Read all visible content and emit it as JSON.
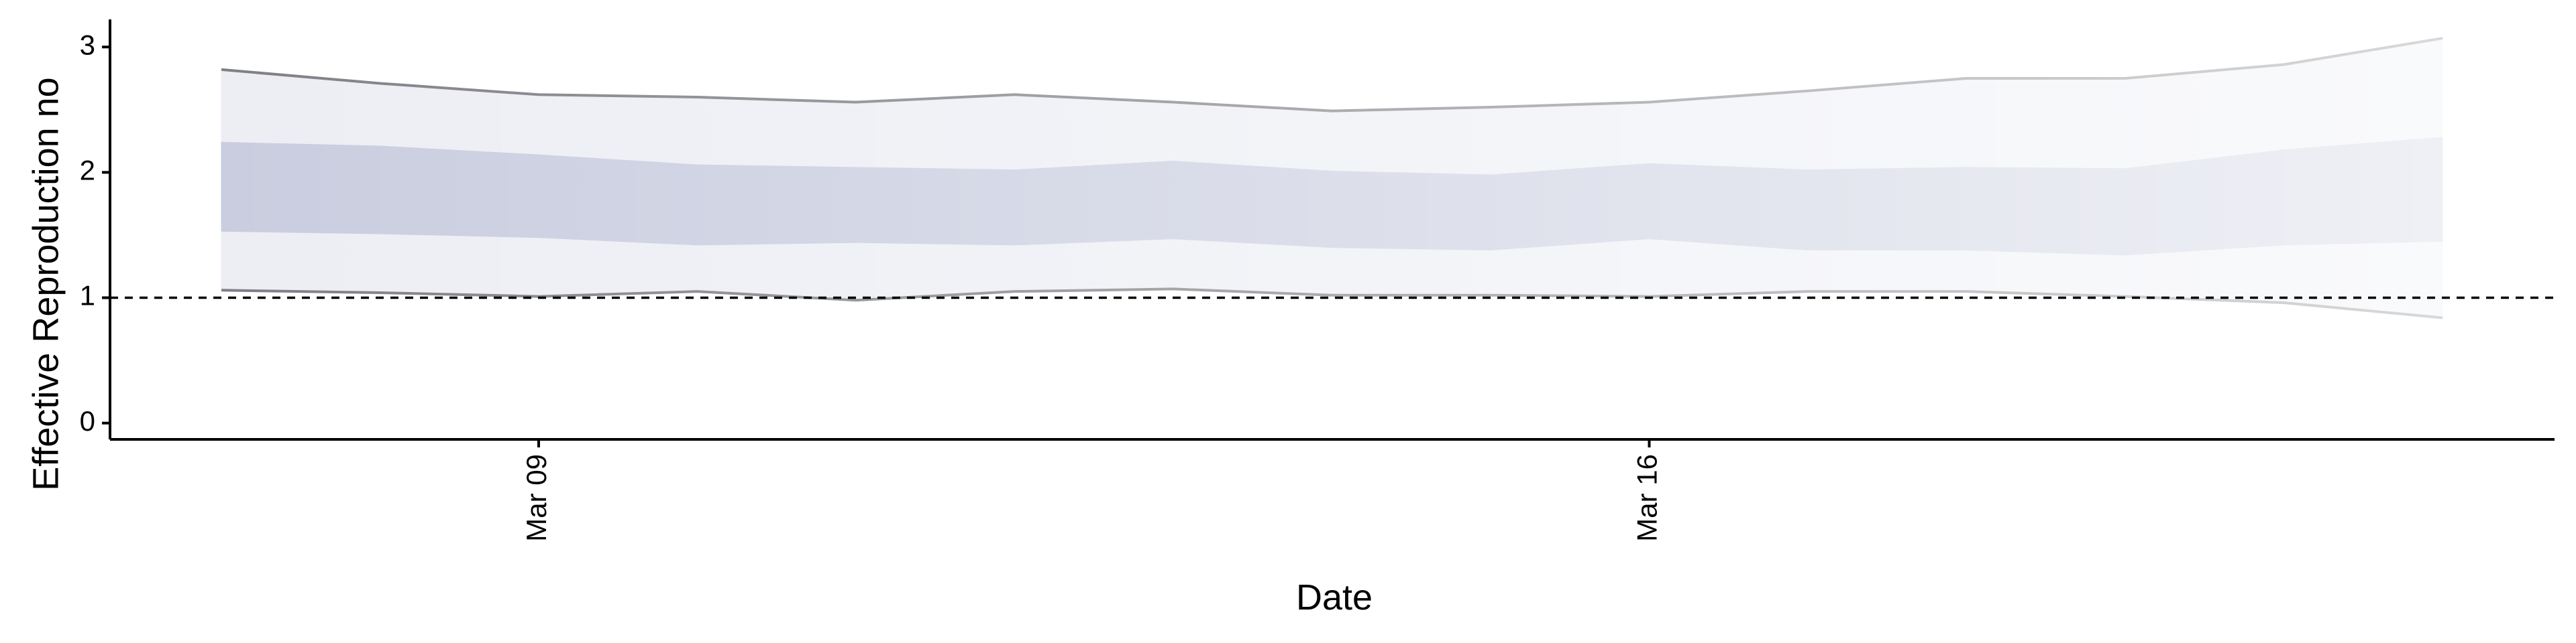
{
  "chart_data": {
    "type": "interval-band",
    "x": [
      "Mar 07",
      "Mar 08",
      "Mar 09",
      "Mar 10",
      "Mar 11",
      "Mar 12",
      "Mar 13",
      "Mar 14",
      "Mar 15",
      "Mar 16",
      "Mar 17",
      "Mar 18",
      "Mar 19",
      "Mar 20",
      "Mar 21"
    ],
    "xticks": [
      "Mar 09",
      "Mar 16"
    ],
    "x_label": "Date",
    "y_label": "Effective Reproduction no",
    "ylim": [
      -0.13,
      3.22
    ],
    "yticks": [
      0,
      1,
      2,
      3
    ],
    "hline": 1,
    "bands": [
      {
        "color": "#eceef4",
        "line_color": "#7f7f85",
        "upper": [
          2.82,
          2.71,
          2.62,
          2.6,
          2.56,
          2.62,
          2.56,
          2.49,
          2.52,
          2.56,
          2.65,
          2.75,
          2.75,
          2.86,
          3.07
        ],
        "lower": [
          1.06,
          1.04,
          1.01,
          1.05,
          0.98,
          1.05,
          1.07,
          1.02,
          1.02,
          1.01,
          1.05,
          1.05,
          1.01,
          0.96,
          0.84
        ]
      },
      {
        "color": "#c9cddf",
        "upper": [
          2.24,
          2.21,
          2.14,
          2.06,
          2.04,
          2.02,
          2.09,
          2.01,
          1.98,
          2.07,
          2.02,
          2.04,
          2.03,
          2.18,
          2.28
        ],
        "lower": [
          1.53,
          1.51,
          1.48,
          1.42,
          1.44,
          1.42,
          1.47,
          1.4,
          1.38,
          1.47,
          1.38,
          1.38,
          1.34,
          1.42,
          1.45
        ]
      }
    ]
  }
}
